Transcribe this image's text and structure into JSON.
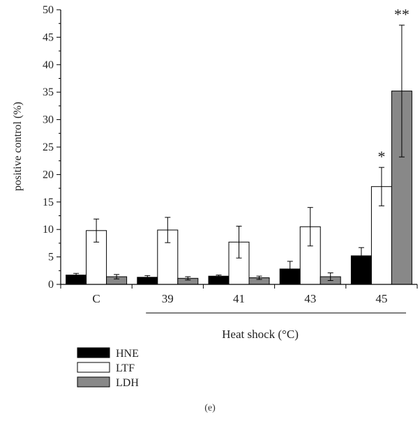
{
  "chart_data": {
    "type": "bar",
    "ylabel": "positive control (%)",
    "ylim": [
      0,
      50
    ],
    "yticks": [
      0,
      5,
      10,
      15,
      20,
      25,
      30,
      35,
      40,
      45,
      50
    ],
    "categories": [
      "C",
      "39",
      "41",
      "43",
      "45"
    ],
    "group_label": "Heat shock (°C)",
    "group_range": [
      "39",
      "45"
    ],
    "series": [
      {
        "name": "HNE",
        "color": "#000000",
        "values": [
          1.7,
          1.3,
          1.5,
          2.8,
          5.2
        ],
        "errors": [
          0.3,
          0.3,
          0.2,
          1.4,
          1.5
        ]
      },
      {
        "name": "LTF",
        "color": "#ffffff",
        "values": [
          9.8,
          9.9,
          7.7,
          10.5,
          17.8
        ],
        "errors": [
          2.1,
          2.3,
          2.9,
          3.5,
          3.5
        ]
      },
      {
        "name": "LDH",
        "color": "#888888",
        "values": [
          1.4,
          1.1,
          1.2,
          1.4,
          35.2
        ],
        "errors": [
          0.4,
          0.3,
          0.3,
          0.7,
          12.0
        ]
      }
    ],
    "annotations": [
      {
        "series": "LTF",
        "category": "45",
        "text": "*"
      },
      {
        "series": "LDH",
        "category": "45",
        "text": "**"
      }
    ],
    "legend_placement": "bottom-left",
    "panel_label": "(e)"
  }
}
